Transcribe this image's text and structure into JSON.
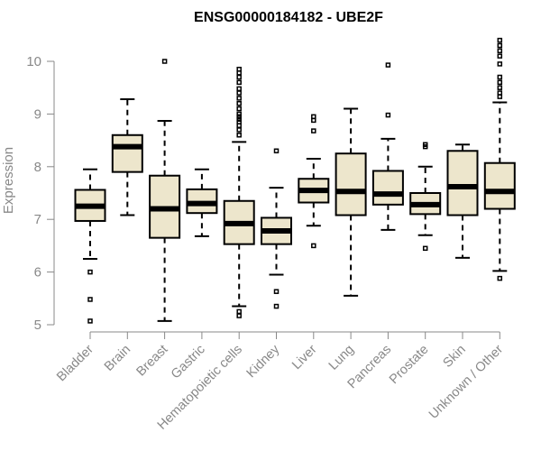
{
  "chart_data": {
    "type": "boxplot",
    "title": "ENSG00000184182 - UBE2F",
    "ylabel": "Expression",
    "xlabel": "",
    "ylim": [
      5,
      10
    ],
    "yticks": [
      5,
      6,
      7,
      8,
      9,
      10
    ],
    "box_fill": "#ede6cc",
    "categories": [
      "Bladder",
      "Brain",
      "Breast",
      "Gastric",
      "Hematopoietic cells",
      "Kidney",
      "Liver",
      "Lung",
      "Pancreas",
      "Prostate",
      "Skin",
      "Unknown / Other"
    ],
    "boxes": [
      {
        "category": "Bladder",
        "whisker_low": 6.25,
        "q1": 6.97,
        "median": 7.25,
        "q3": 7.56,
        "whisker_high": 7.95,
        "outliers": [
          6.0,
          5.48,
          5.07
        ]
      },
      {
        "category": "Brain",
        "whisker_low": 7.08,
        "q1": 7.9,
        "median": 8.38,
        "q3": 8.6,
        "whisker_high": 9.28,
        "outliers": []
      },
      {
        "category": "Breast",
        "whisker_low": 5.07,
        "q1": 6.65,
        "median": 7.2,
        "q3": 7.83,
        "whisker_high": 8.87,
        "outliers": [
          10.0
        ]
      },
      {
        "category": "Gastric",
        "whisker_low": 6.68,
        "q1": 7.12,
        "median": 7.3,
        "q3": 7.57,
        "whisker_high": 7.95,
        "outliers": []
      },
      {
        "category": "Hematopoietic cells",
        "whisker_low": 5.35,
        "q1": 6.53,
        "median": 6.92,
        "q3": 7.35,
        "whisker_high": 8.47,
        "outliers": [
          9.85,
          9.78,
          9.7,
          9.6,
          9.48,
          9.4,
          9.3,
          9.2,
          9.1,
          9.0,
          8.95,
          8.9,
          8.85,
          8.78,
          8.7,
          8.6,
          5.25,
          5.17
        ]
      },
      {
        "category": "Kidney",
        "whisker_low": 5.95,
        "q1": 6.53,
        "median": 6.78,
        "q3": 7.03,
        "whisker_high": 7.6,
        "outliers": [
          8.3,
          5.63,
          5.35
        ]
      },
      {
        "category": "Liver",
        "whisker_low": 6.88,
        "q1": 7.32,
        "median": 7.55,
        "q3": 7.77,
        "whisker_high": 8.15,
        "outliers": [
          8.95,
          8.88,
          8.68,
          6.5
        ]
      },
      {
        "category": "Lung",
        "whisker_low": 5.55,
        "q1": 7.08,
        "median": 7.53,
        "q3": 8.25,
        "whisker_high": 9.1,
        "outliers": []
      },
      {
        "category": "Pancreas",
        "whisker_low": 6.8,
        "q1": 7.28,
        "median": 7.48,
        "q3": 7.92,
        "whisker_high": 8.53,
        "outliers": [
          9.93,
          8.98
        ]
      },
      {
        "category": "Prostate",
        "whisker_low": 6.7,
        "q1": 7.1,
        "median": 7.28,
        "q3": 7.5,
        "whisker_high": 8.0,
        "outliers": [
          8.42,
          8.38,
          6.45
        ]
      },
      {
        "category": "Skin",
        "whisker_low": 6.27,
        "q1": 7.08,
        "median": 7.62,
        "q3": 8.3,
        "whisker_high": 8.42,
        "outliers": []
      },
      {
        "category": "Unknown / Other",
        "whisker_low": 6.02,
        "q1": 7.2,
        "median": 7.53,
        "q3": 8.07,
        "whisker_high": 9.22,
        "outliers": [
          10.4,
          10.3,
          10.2,
          10.1,
          9.95,
          9.7,
          9.6,
          9.5,
          9.4,
          9.33,
          5.88
        ]
      }
    ]
  }
}
